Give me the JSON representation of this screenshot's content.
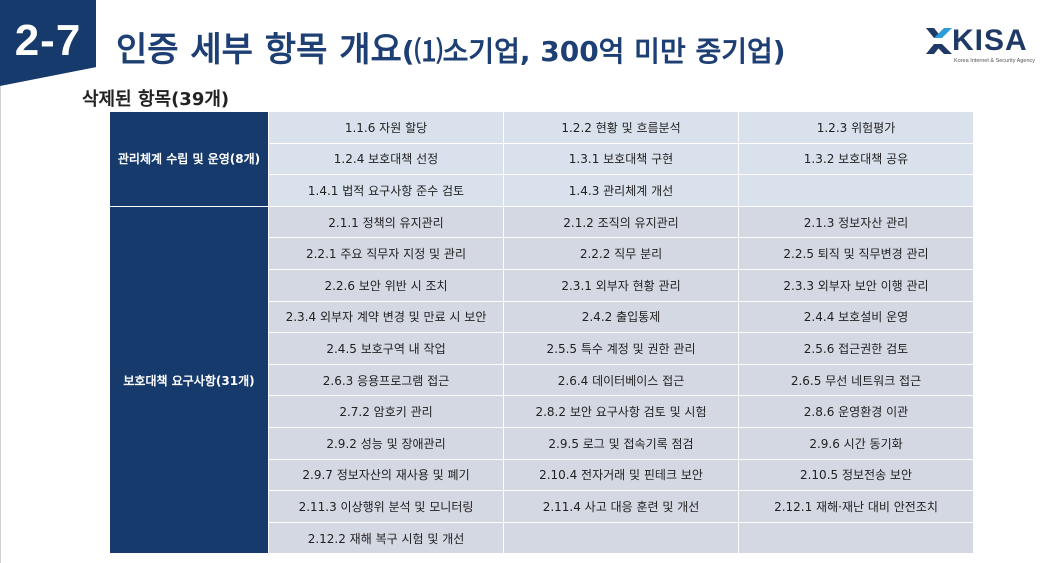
{
  "header": {
    "number": "2-7",
    "title_main": "인증 세부 항목 개요",
    "title_paren": "(⑴소기업, 300억 미만 중기업)"
  },
  "logo": {
    "word": "KISA",
    "sub": "Korea Internet & Security Agency",
    "accent_color": "#2b9bd9"
  },
  "subtitle": "삭제된 항목(39개)",
  "groups": [
    {
      "category": "관리체계 수립 및 운영(8개)",
      "rows": [
        [
          "1.1.6 자원 할당",
          "1.2.2 현황 및 흐름분석",
          "1.2.3 위험평가"
        ],
        [
          "1.2.4 보호대책 선정",
          "1.3.1 보호대책 구현",
          "1.3.2 보호대책 공유"
        ],
        [
          "1.4.1 법적 요구사항 준수 검토",
          "1.4.3 관리체계 개선",
          ""
        ]
      ]
    },
    {
      "category": "보호대책 요구사항(31개)",
      "rows": [
        [
          "2.1.1 정책의 유지관리",
          "2.1.2 조직의 유지관리",
          "2.1.3 정보자산 관리"
        ],
        [
          "2.2.1 주요 직무자 지정 및 관리",
          "2.2.2 직무 분리",
          "2.2.5 퇴직 및 직무변경 관리"
        ],
        [
          "2.2.6 보안 위반 시 조치",
          "2.3.1 외부자 현황 관리",
          "2.3.3 외부자 보안 이행 관리"
        ],
        [
          "2.3.4 외부자 계약 변경 및 만료 시 보안",
          "2.4.2 출입통제",
          "2.4.4 보호설비 운영"
        ],
        [
          "2.4.5 보호구역 내 작업",
          "2.5.5 특수 계정 및 권한 관리",
          "2.5.6 접근권한 검토"
        ],
        [
          "2.6.3 응용프로그램 접근",
          "2.6.4 데이터베이스 접근",
          "2.6.5 무선 네트워크 접근"
        ],
        [
          "2.7.2 암호키 관리",
          "2.8.2 보안 요구사항 검토 및 시험",
          "2.8.6 운영환경 이관"
        ],
        [
          "2.9.2 성능 및 장애관리",
          "2.9.5 로그 및 접속기록 점검",
          "2.9.6 시간 동기화"
        ],
        [
          "2.9.7 정보자산의 재사용 및 폐기",
          "2.10.4 전자거래 및 핀테크 보안",
          "2.10.5 정보전송 보안"
        ],
        [
          "2.11.3 이상행위 분석 및 모니터링",
          "2.11.4 사고 대응 훈련 및 개선",
          "2.12.1 재해·재난 대비 안전조치"
        ],
        [
          "2.12.2 재해 복구 시험 및 개선",
          "",
          ""
        ]
      ]
    }
  ]
}
